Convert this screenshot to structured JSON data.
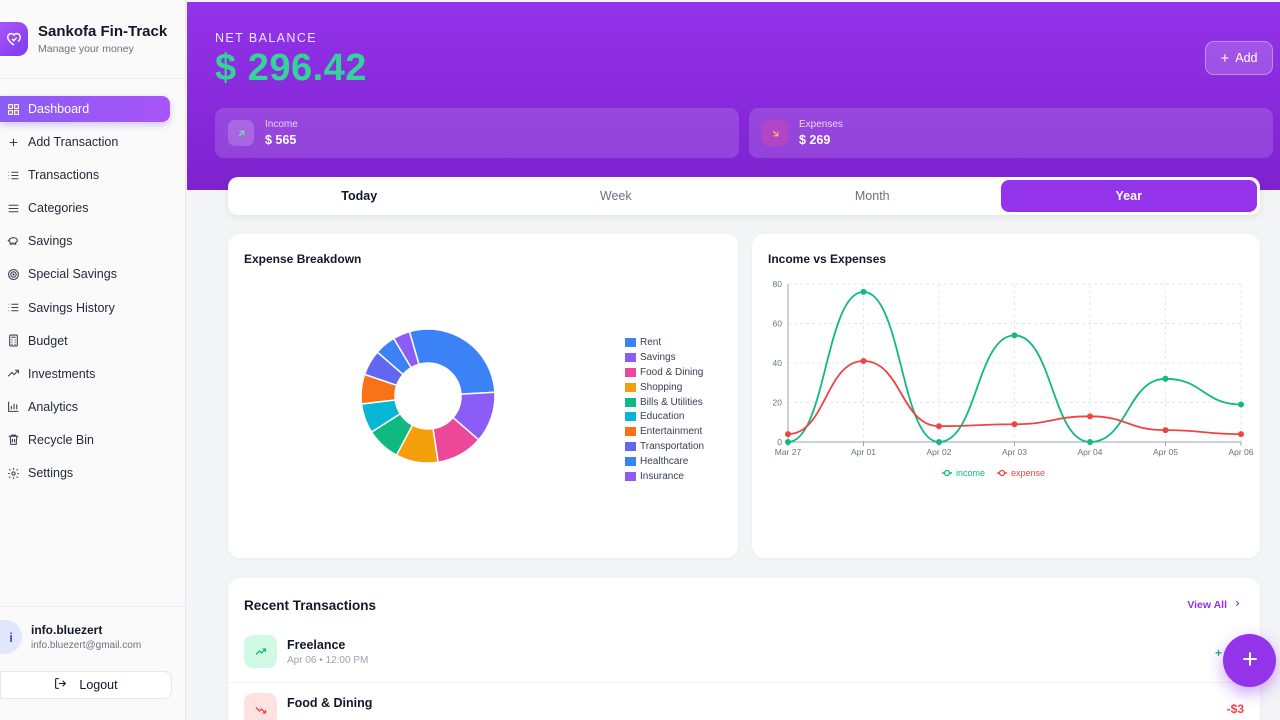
{
  "app": {
    "title": "Sankofa Fin-Track",
    "subtitle": "Manage your money",
    "logo_icon": "heart-check-icon"
  },
  "sidebar": {
    "items": [
      {
        "label": "Dashboard",
        "icon": "grid-icon",
        "active": true
      },
      {
        "label": "Add Transaction",
        "icon": "plus-icon"
      },
      {
        "label": "Transactions",
        "icon": "list-icon"
      },
      {
        "label": "Categories",
        "icon": "menu-icon"
      },
      {
        "label": "Savings",
        "icon": "piggy-bank-icon"
      },
      {
        "label": "Special Savings",
        "icon": "target-icon"
      },
      {
        "label": "Savings History",
        "icon": "history-list-icon"
      },
      {
        "label": "Budget",
        "icon": "calculator-icon"
      },
      {
        "label": "Investments",
        "icon": "trending-up-icon"
      },
      {
        "label": "Analytics",
        "icon": "bar-chart-icon"
      },
      {
        "label": "Recycle Bin",
        "icon": "trash-icon"
      },
      {
        "label": "Settings",
        "icon": "gear-icon"
      }
    ]
  },
  "user": {
    "initial": "i",
    "name": "info.bluezert",
    "email": "info.bluezert@gmail.com",
    "logout_label": "Logout"
  },
  "header": {
    "net_balance_label": "NET BALANCE",
    "net_balance_value": "$ 296.42",
    "add_label": "Add",
    "income": {
      "label": "Income",
      "value": "$ 565"
    },
    "expenses": {
      "label": "Expenses",
      "value": "$ 269"
    }
  },
  "tabs": [
    {
      "label": "Today"
    },
    {
      "label": "Week"
    },
    {
      "label": "Month"
    },
    {
      "label": "Year",
      "active": true
    }
  ],
  "chart_data": [
    {
      "type": "pie",
      "title": "Expense Breakdown",
      "categories": [
        "Rent",
        "Savings",
        "Food & Dining",
        "Shopping",
        "Bills & Utilities",
        "Education",
        "Entertainment",
        "Transportation",
        "Healthcare",
        "Insurance"
      ],
      "values": [
        28,
        12,
        11,
        10,
        8,
        7,
        7,
        6,
        5,
        4
      ],
      "colors": [
        "#3b82f6",
        "#8b5cf6",
        "#ec4899",
        "#f59e0b",
        "#10b981",
        "#06b6d4",
        "#f97316",
        "#6366f1",
        "#3b82f6",
        "#8b5cf6"
      ],
      "legend_position": "right"
    },
    {
      "type": "line",
      "title": "Income vs Expenses",
      "x": [
        "Mar 27",
        "Apr 01",
        "Apr 02",
        "Apr 03",
        "Apr 04",
        "Apr 05",
        "Apr 06"
      ],
      "ylim": [
        0,
        80
      ],
      "yticks": [
        0,
        20,
        40,
        60,
        80
      ],
      "grid": true,
      "legend_position": "bottom",
      "series": [
        {
          "name": "income",
          "values": [
            0,
            76,
            0,
            54,
            0,
            32,
            19
          ],
          "color": "#10b981"
        },
        {
          "name": "expense",
          "values": [
            4,
            41,
            8,
            9,
            13,
            6,
            4
          ],
          "color": "#ef4444"
        }
      ]
    }
  ],
  "recent": {
    "title": "Recent Transactions",
    "view_all": "View All",
    "items": [
      {
        "name": "Freelance",
        "meta": "Apr 06 • 12:00 PM",
        "amount": "+",
        "type": "income"
      },
      {
        "name": "Food & Dining",
        "meta": "",
        "amount": "-$3",
        "type": "expense"
      }
    ]
  },
  "colors": {
    "accent": "#9333ea",
    "income": "#10b981",
    "expense": "#ef4444",
    "balance": "#34d399"
  }
}
